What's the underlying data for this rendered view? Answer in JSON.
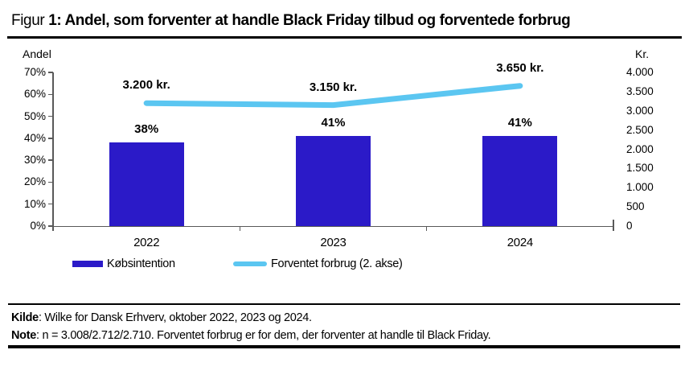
{
  "header": {
    "figure_label": "Figur",
    "title": "1: Andel, som forventer at handle Black Friday tilbud og forventede forbrug"
  },
  "chart_data": {
    "type": "bar",
    "title": "Andel, som forventer at handle Black Friday tilbud og forventede forbrug",
    "categories": [
      "2022",
      "2023",
      "2024"
    ],
    "series": [
      {
        "name": "Købsintention",
        "type": "bar",
        "axis": "left",
        "values": [
          38,
          41,
          41
        ],
        "labels": [
          "38%",
          "41%",
          "41%"
        ],
        "color": "#2B1AC8"
      },
      {
        "name": "Forventet forbrug (2. akse)",
        "type": "line",
        "axis": "right",
        "values": [
          3200,
          3150,
          3650
        ],
        "labels": [
          "3.200 kr.",
          "3.150 kr.",
          "3.650 kr."
        ],
        "color": "#5BC6F1"
      }
    ],
    "left_axis": {
      "title": "Andel",
      "min": 0,
      "max": 70,
      "ticks": [
        "70%",
        "60%",
        "50%",
        "40%",
        "30%",
        "20%",
        "10%",
        "0%"
      ]
    },
    "right_axis": {
      "title": "Kr.",
      "min": 0,
      "max": 4000,
      "ticks": [
        "4.000",
        "3.500",
        "3.000",
        "2.500",
        "2.000",
        "1.500",
        "1.000",
        "500",
        "0"
      ]
    },
    "grid": false,
    "legend_position": "bottom"
  },
  "legend": {
    "bar_label": "Købsintention",
    "line_label": "Forventet forbrug (2. akse)"
  },
  "footer": {
    "kilde_label": "Kilde",
    "kilde_text": ": Wilke for Dansk Erhverv, oktober 2022, 2023 og 2024.",
    "note_label": "Note",
    "note_text": ": n = 3.008/2.712/2.710. Forventet forbrug er for dem, der forventer at handle til Black Friday."
  },
  "colors": {
    "bar": "#2B1AC8",
    "line": "#5BC6F1",
    "axis": "#595959",
    "text": "#000000"
  }
}
